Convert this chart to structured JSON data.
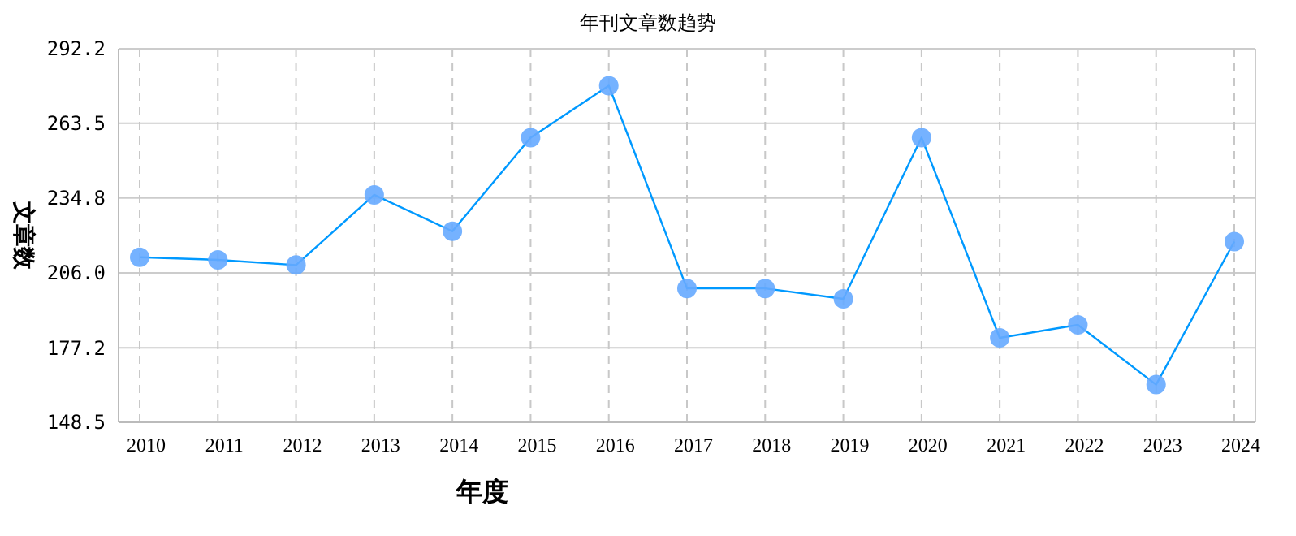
{
  "chart_data": {
    "type": "line",
    "title": "年刊文章数趋势",
    "xlabel": "年度",
    "ylabel": "文章数",
    "categories": [
      "2010",
      "2011",
      "2012",
      "2013",
      "2014",
      "2015",
      "2016",
      "2017",
      "2018",
      "2019",
      "2020",
      "2021",
      "2022",
      "2023",
      "2024"
    ],
    "series": [
      {
        "color": "#0099ff",
        "values": [
          212,
          211,
          209,
          236,
          222,
          258,
          278,
          200,
          200,
          196,
          258,
          181,
          186,
          163,
          218
        ]
      }
    ],
    "ylim": [
      148.5,
      292.2
    ],
    "yticks": [
      {
        "value": 148.5,
        "label": "148.5"
      },
      {
        "value": 177.2,
        "label": "177.2"
      },
      {
        "value": 206,
        "label": "206.0"
      },
      {
        "value": 234.8,
        "label": "234.8"
      },
      {
        "value": 263.5,
        "label": "263.5"
      },
      {
        "value": 292.2,
        "label": "292.2"
      }
    ],
    "grid": true,
    "marker": "circle",
    "line_style": "solid"
  }
}
